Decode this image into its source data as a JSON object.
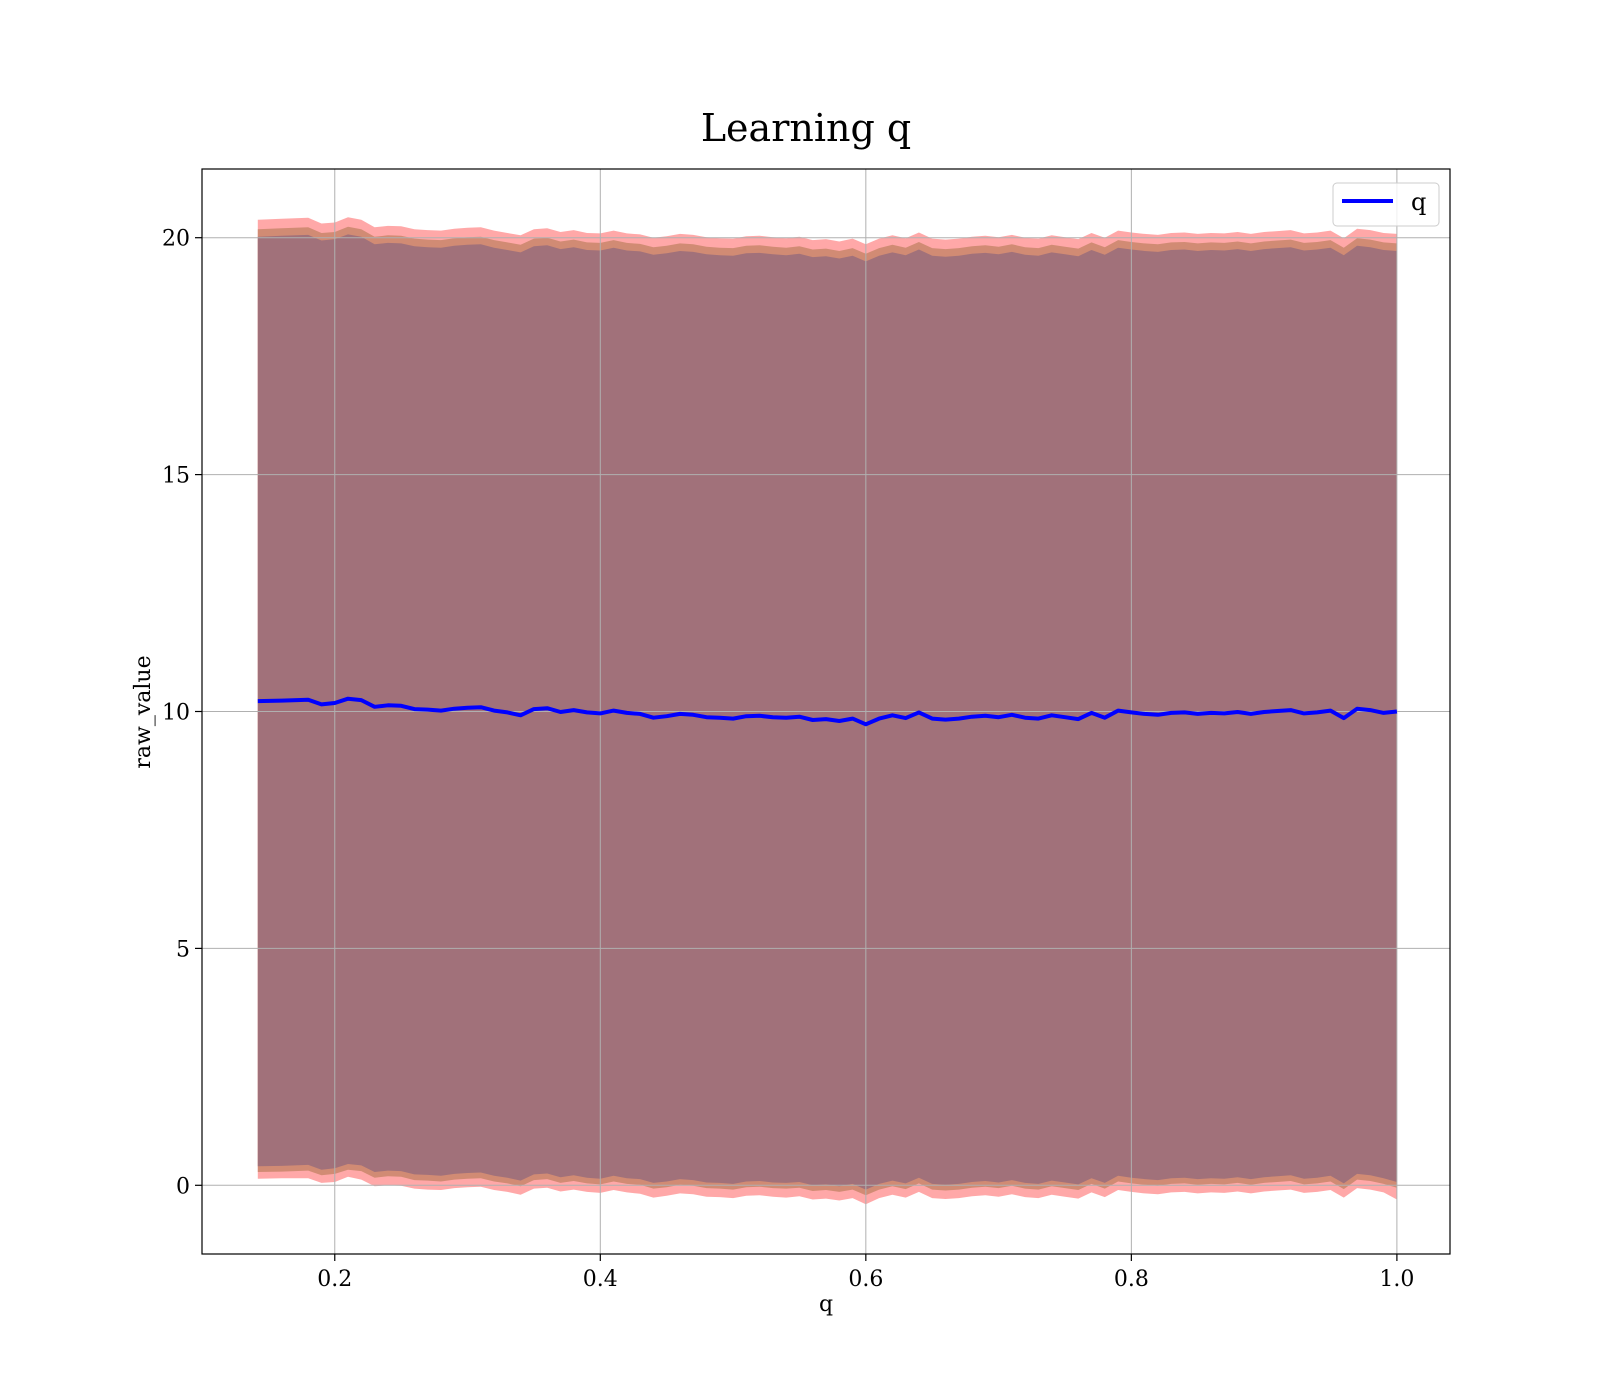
{
  "chart_data": {
    "type": "line",
    "title": "Learning q",
    "xlabel": "q",
    "ylabel": "raw_value",
    "xlim": [
      0.1,
      1.04
    ],
    "ylim": [
      -1.45,
      21.45
    ],
    "xticks": [
      0.2,
      0.4,
      0.6,
      0.8,
      1.0
    ],
    "xtick_labels": [
      "0.2",
      "0.4",
      "0.6",
      "0.8",
      "1.0"
    ],
    "yticks": [
      0,
      5,
      10,
      15,
      20
    ],
    "ytick_labels": [
      "0",
      "5",
      "10",
      "15",
      "20"
    ],
    "grid": true,
    "legend": {
      "placement": "top-right",
      "entries": [
        "q"
      ]
    },
    "series": [
      {
        "name": "q",
        "color": "#0000ff",
        "x": [
          0.142,
          0.16,
          0.18,
          0.19,
          0.2,
          0.21,
          0.22,
          0.23,
          0.24,
          0.25,
          0.26,
          0.27,
          0.28,
          0.29,
          0.3,
          0.31,
          0.32,
          0.33,
          0.34,
          0.35,
          0.36,
          0.37,
          0.38,
          0.39,
          0.4,
          0.41,
          0.42,
          0.43,
          0.44,
          0.45,
          0.46,
          0.47,
          0.48,
          0.49,
          0.5,
          0.51,
          0.52,
          0.53,
          0.54,
          0.55,
          0.56,
          0.57,
          0.58,
          0.59,
          0.6,
          0.61,
          0.62,
          0.63,
          0.64,
          0.65,
          0.66,
          0.67,
          0.68,
          0.69,
          0.7,
          0.71,
          0.72,
          0.73,
          0.74,
          0.75,
          0.76,
          0.77,
          0.78,
          0.79,
          0.8,
          0.81,
          0.82,
          0.83,
          0.84,
          0.85,
          0.86,
          0.87,
          0.88,
          0.89,
          0.9,
          0.91,
          0.92,
          0.93,
          0.94,
          0.95,
          0.96,
          0.97,
          0.98,
          0.99,
          1.0
        ],
        "y": [
          10.22,
          10.23,
          10.25,
          10.15,
          10.18,
          10.27,
          10.24,
          10.1,
          10.13,
          10.12,
          10.05,
          10.04,
          10.02,
          10.06,
          10.08,
          10.09,
          10.02,
          9.98,
          9.92,
          10.05,
          10.07,
          9.99,
          10.03,
          9.98,
          9.96,
          10.02,
          9.97,
          9.95,
          9.87,
          9.9,
          9.95,
          9.93,
          9.88,
          9.87,
          9.85,
          9.9,
          9.91,
          9.88,
          9.87,
          9.89,
          9.82,
          9.84,
          9.8,
          9.85,
          9.73,
          9.85,
          9.92,
          9.86,
          9.98,
          9.85,
          9.83,
          9.85,
          9.89,
          9.91,
          9.88,
          9.93,
          9.87,
          9.85,
          9.92,
          9.88,
          9.84,
          9.97,
          9.87,
          10.02,
          9.98,
          9.95,
          9.93,
          9.97,
          9.98,
          9.95,
          9.97,
          9.96,
          9.99,
          9.95,
          9.99,
          10.01,
          10.03,
          9.96,
          9.98,
          10.02,
          9.86,
          10.06,
          10.03,
          9.97,
          10.0
        ],
        "band": {
          "outer_lower": [
            0.14,
            0.15,
            0.15,
            0.05,
            0.07,
            0.18,
            0.12,
            -0.02,
            0.0,
            -0.01,
            -0.07,
            -0.09,
            -0.1,
            -0.06,
            -0.04,
            -0.03,
            -0.1,
            -0.14,
            -0.2,
            -0.07,
            -0.05,
            -0.13,
            -0.09,
            -0.14,
            -0.16,
            -0.1,
            -0.15,
            -0.18,
            -0.26,
            -0.22,
            -0.17,
            -0.19,
            -0.24,
            -0.25,
            -0.27,
            -0.22,
            -0.21,
            -0.24,
            -0.26,
            -0.23,
            -0.3,
            -0.28,
            -0.32,
            -0.27,
            -0.4,
            -0.27,
            -0.2,
            -0.26,
            -0.14,
            -0.27,
            -0.29,
            -0.27,
            -0.23,
            -0.21,
            -0.24,
            -0.19,
            -0.25,
            -0.27,
            -0.2,
            -0.24,
            -0.28,
            -0.15,
            -0.25,
            -0.1,
            -0.14,
            -0.17,
            -0.19,
            -0.15,
            -0.14,
            -0.17,
            -0.15,
            -0.16,
            -0.13,
            -0.17,
            -0.13,
            -0.11,
            -0.09,
            -0.16,
            -0.14,
            -0.1,
            -0.26,
            -0.06,
            -0.09,
            -0.15,
            -0.3
          ],
          "outer_upper": [
            20.38,
            20.4,
            20.42,
            20.3,
            20.32,
            20.43,
            20.38,
            20.22,
            20.25,
            20.24,
            20.18,
            20.16,
            20.15,
            20.19,
            20.21,
            20.22,
            20.15,
            20.1,
            20.05,
            20.18,
            20.2,
            20.12,
            20.16,
            20.1,
            20.09,
            20.15,
            20.09,
            20.07,
            20.0,
            20.03,
            20.08,
            20.06,
            20.01,
            19.99,
            19.98,
            20.03,
            20.04,
            20.01,
            19.99,
            20.02,
            19.95,
            19.97,
            19.92,
            19.98,
            19.86,
            19.98,
            20.05,
            19.99,
            20.11,
            19.98,
            19.96,
            19.98,
            20.02,
            20.04,
            20.01,
            20.06,
            20.0,
            19.98,
            20.05,
            20.01,
            19.97,
            20.1,
            20.0,
            20.15,
            20.11,
            20.08,
            20.06,
            20.1,
            20.11,
            20.08,
            20.1,
            20.09,
            20.12,
            20.08,
            20.12,
            20.14,
            20.16,
            20.09,
            20.11,
            20.15,
            19.99,
            20.19,
            20.16,
            20.1,
            20.08
          ],
          "mid_lower": [
            0.28,
            0.29,
            0.31,
            0.21,
            0.24,
            0.33,
            0.3,
            0.16,
            0.19,
            0.18,
            0.11,
            0.1,
            0.08,
            0.12,
            0.14,
            0.15,
            0.08,
            0.04,
            -0.02,
            0.11,
            0.13,
            0.05,
            0.09,
            0.04,
            0.02,
            0.08,
            0.03,
            0.01,
            -0.07,
            -0.04,
            0.01,
            -0.01,
            -0.06,
            -0.07,
            -0.09,
            -0.04,
            -0.03,
            -0.06,
            -0.07,
            -0.05,
            -0.12,
            -0.1,
            -0.14,
            -0.09,
            -0.21,
            -0.09,
            -0.02,
            -0.08,
            0.04,
            -0.09,
            -0.11,
            -0.09,
            -0.05,
            -0.03,
            -0.06,
            -0.01,
            -0.07,
            -0.09,
            -0.02,
            -0.06,
            -0.1,
            0.03,
            -0.07,
            0.08,
            0.04,
            0.01,
            -0.01,
            0.03,
            0.04,
            0.01,
            0.03,
            0.02,
            0.05,
            0.01,
            0.05,
            0.07,
            0.09,
            0.02,
            0.04,
            0.08,
            -0.08,
            0.12,
            0.09,
            0.03,
            -0.05
          ],
          "mid_upper": [
            20.18,
            20.2,
            20.22,
            20.1,
            20.12,
            20.23,
            20.18,
            20.02,
            20.05,
            20.04,
            19.98,
            19.96,
            19.95,
            19.99,
            20.01,
            20.02,
            19.95,
            19.9,
            19.85,
            19.98,
            20.0,
            19.92,
            19.96,
            19.9,
            19.89,
            19.95,
            19.89,
            19.87,
            19.8,
            19.83,
            19.88,
            19.86,
            19.81,
            19.79,
            19.78,
            19.83,
            19.84,
            19.81,
            19.79,
            19.82,
            19.75,
            19.77,
            19.72,
            19.78,
            19.66,
            19.78,
            19.85,
            19.79,
            19.91,
            19.78,
            19.76,
            19.78,
            19.82,
            19.84,
            19.81,
            19.86,
            19.8,
            19.78,
            19.85,
            19.81,
            19.77,
            19.9,
            19.8,
            19.95,
            19.91,
            19.88,
            19.86,
            19.9,
            19.91,
            19.88,
            19.9,
            19.89,
            19.92,
            19.88,
            19.92,
            19.94,
            19.96,
            19.89,
            19.91,
            19.95,
            19.79,
            19.99,
            19.96,
            19.9,
            19.88
          ],
          "inner_lower": [
            0.4,
            0.41,
            0.43,
            0.33,
            0.36,
            0.45,
            0.42,
            0.28,
            0.31,
            0.3,
            0.23,
            0.22,
            0.2,
            0.24,
            0.26,
            0.27,
            0.2,
            0.16,
            0.1,
            0.23,
            0.25,
            0.17,
            0.21,
            0.16,
            0.14,
            0.2,
            0.15,
            0.13,
            0.05,
            0.08,
            0.13,
            0.11,
            0.06,
            0.05,
            0.03,
            0.08,
            0.09,
            0.06,
            0.05,
            0.07,
            0.0,
            0.02,
            -0.02,
            0.03,
            -0.09,
            0.03,
            0.1,
            0.04,
            0.16,
            0.03,
            0.01,
            0.03,
            0.07,
            0.09,
            0.06,
            0.11,
            0.05,
            0.03,
            0.1,
            0.06,
            0.02,
            0.15,
            0.05,
            0.2,
            0.16,
            0.13,
            0.11,
            0.15,
            0.16,
            0.13,
            0.15,
            0.14,
            0.17,
            0.13,
            0.17,
            0.19,
            0.21,
            0.14,
            0.16,
            0.2,
            0.04,
            0.24,
            0.21,
            0.15,
            0.07
          ],
          "inner_upper": [
            20.02,
            20.04,
            20.06,
            19.94,
            19.97,
            20.07,
            20.02,
            19.86,
            19.89,
            19.88,
            19.82,
            19.8,
            19.79,
            19.83,
            19.85,
            19.86,
            19.79,
            19.74,
            19.69,
            19.82,
            19.84,
            19.76,
            19.8,
            19.74,
            19.73,
            19.79,
            19.73,
            19.71,
            19.64,
            19.67,
            19.72,
            19.7,
            19.65,
            19.63,
            19.62,
            19.67,
            19.68,
            19.65,
            19.63,
            19.66,
            19.59,
            19.61,
            19.56,
            19.62,
            19.5,
            19.62,
            19.69,
            19.63,
            19.75,
            19.62,
            19.6,
            19.62,
            19.66,
            19.68,
            19.65,
            19.7,
            19.64,
            19.62,
            19.69,
            19.65,
            19.61,
            19.74,
            19.64,
            19.79,
            19.75,
            19.72,
            19.7,
            19.74,
            19.75,
            19.72,
            19.74,
            19.73,
            19.76,
            19.72,
            19.76,
            19.78,
            19.8,
            19.73,
            19.75,
            19.79,
            19.63,
            19.83,
            19.8,
            19.74,
            19.72
          ]
        }
      }
    ],
    "colors": {
      "line": "#0000ff",
      "band_outer": "#ff9999",
      "band_mid": "#c9866b",
      "band_inner": "#a1717a",
      "grid": "#b0b0b0"
    }
  }
}
